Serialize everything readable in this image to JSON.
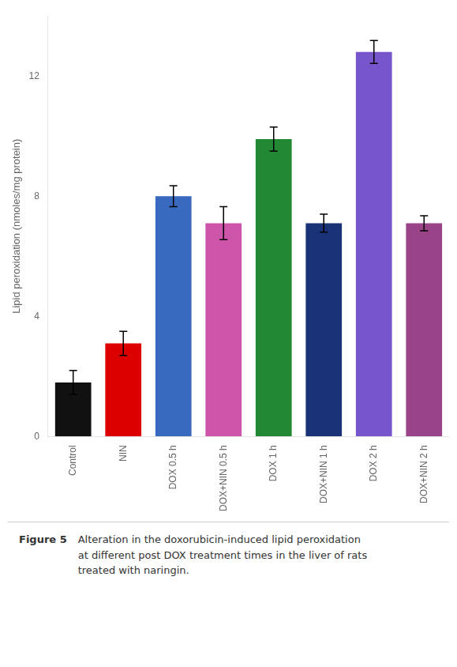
{
  "chart_data": {
    "type": "bar",
    "categories": [
      "Control",
      "NIN",
      "DOX 0.5 h",
      "DOX+NIN 0.5 h",
      "DOX 1 h",
      "DOX+NIN 1 h",
      "DOX 2 h",
      "DOX+NIN 2 h"
    ],
    "values": [
      1.8,
      3.1,
      8.0,
      7.1,
      9.9,
      7.1,
      12.8,
      7.1
    ],
    "errors": [
      0.4,
      0.4,
      0.35,
      0.55,
      0.4,
      0.3,
      0.38,
      0.25
    ],
    "colors": [
      "#111111",
      "#dd0000",
      "#3a6abf",
      "#cc55aa",
      "#228833",
      "#1a3377",
      "#7755cc",
      "#994488"
    ],
    "ylabel": "Lipid peroxidation (nmoles/mg protein)",
    "ylim": [
      0,
      14
    ],
    "yticks": [
      0,
      4,
      8,
      12
    ],
    "grid": false,
    "figure_label": "Figure 5",
    "caption": [
      "Alteration in the doxorubicin-induced lipid peroxidation",
      "at different post DOX treatment times in the liver of rats",
      "treated with naringin."
    ]
  }
}
